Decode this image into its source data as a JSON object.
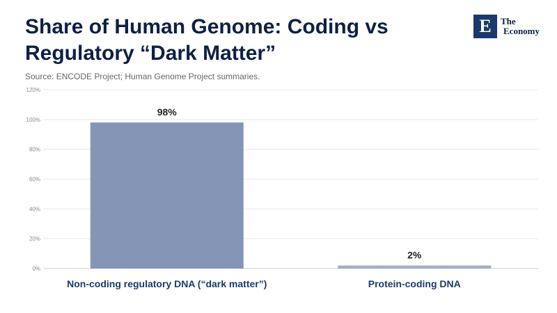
{
  "header": {
    "title_line1": "Share of Human Genome: Coding vs",
    "title_line2": "Regulatory “Dark Matter”",
    "source": "Source: ENCODE Project; Human Genome Project summaries."
  },
  "logo": {
    "mark": "E",
    "line1": "The",
    "line2": "Economy",
    "color": "#1b3a6b"
  },
  "chart_data": {
    "type": "bar",
    "title": "Share of Human Genome: Coding vs Regulatory “Dark Matter”",
    "categories": [
      "Non-coding regulatory DNA (“dark matter”)",
      "Protein-coding DNA"
    ],
    "values": [
      98,
      2
    ],
    "data_labels": [
      "98%",
      "2%"
    ],
    "colors": [
      "#8595b5",
      "#a8adbf"
    ],
    "ylim": [
      0,
      120
    ],
    "yticks": [
      0,
      20,
      40,
      60,
      80,
      100,
      120
    ],
    "ytick_labels": [
      "0%",
      "20%",
      "40%",
      "60%",
      "80%",
      "100%",
      "120%"
    ],
    "xlabel": "",
    "ylabel": "",
    "grid": true,
    "legend": "none"
  }
}
